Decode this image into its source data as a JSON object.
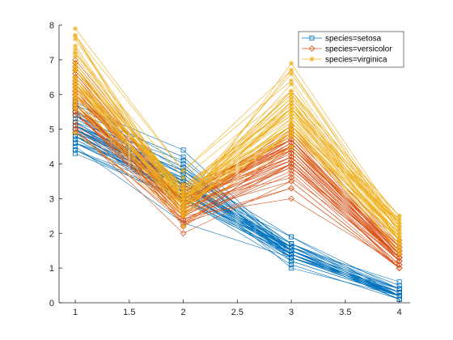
{
  "chart_data": {
    "type": "line",
    "title": "",
    "xlabel": "",
    "ylabel": "",
    "x": [
      1,
      2,
      3,
      4
    ],
    "xlim": [
      0.85,
      4.1
    ],
    "ylim": [
      0,
      8
    ],
    "xticks": [
      1,
      1.5,
      2,
      2.5,
      3,
      3.5,
      4
    ],
    "xtick_labels": [
      "1",
      "1.5",
      "2",
      "2.5",
      "3",
      "3.5",
      "4"
    ],
    "yticks": [
      0,
      1,
      2,
      3,
      4,
      5,
      6,
      7,
      8
    ],
    "ytick_labels": [
      "0",
      "1",
      "2",
      "3",
      "4",
      "5",
      "6",
      "7",
      "8"
    ],
    "grid": false,
    "legend_position": "top-right",
    "series": [
      {
        "name": "species=setosa",
        "color": "#0072BD",
        "marker": "square",
        "lines": [
          [
            5.1,
            3.5,
            1.4,
            0.2
          ],
          [
            4.9,
            3.0,
            1.4,
            0.2
          ],
          [
            4.7,
            3.2,
            1.3,
            0.2
          ],
          [
            4.6,
            3.1,
            1.5,
            0.2
          ],
          [
            5.0,
            3.6,
            1.4,
            0.2
          ],
          [
            5.4,
            3.9,
            1.7,
            0.4
          ],
          [
            4.6,
            3.4,
            1.4,
            0.3
          ],
          [
            5.0,
            3.4,
            1.5,
            0.2
          ],
          [
            4.4,
            2.9,
            1.4,
            0.2
          ],
          [
            4.9,
            3.1,
            1.5,
            0.1
          ],
          [
            5.4,
            3.7,
            1.5,
            0.2
          ],
          [
            4.8,
            3.4,
            1.6,
            0.2
          ],
          [
            4.8,
            3.0,
            1.4,
            0.1
          ],
          [
            4.3,
            3.0,
            1.1,
            0.1
          ],
          [
            5.8,
            4.0,
            1.2,
            0.2
          ],
          [
            5.7,
            4.4,
            1.5,
            0.4
          ],
          [
            5.4,
            3.9,
            1.3,
            0.4
          ],
          [
            5.1,
            3.5,
            1.4,
            0.3
          ],
          [
            5.7,
            3.8,
            1.7,
            0.3
          ],
          [
            5.1,
            3.8,
            1.5,
            0.3
          ],
          [
            5.4,
            3.4,
            1.7,
            0.2
          ],
          [
            5.1,
            3.7,
            1.5,
            0.4
          ],
          [
            4.6,
            3.6,
            1.0,
            0.2
          ],
          [
            5.1,
            3.3,
            1.7,
            0.5
          ],
          [
            4.8,
            3.4,
            1.9,
            0.2
          ],
          [
            5.0,
            3.0,
            1.6,
            0.2
          ],
          [
            5.0,
            3.4,
            1.6,
            0.4
          ],
          [
            5.2,
            3.5,
            1.5,
            0.2
          ],
          [
            5.2,
            3.4,
            1.4,
            0.2
          ],
          [
            4.7,
            3.2,
            1.6,
            0.2
          ],
          [
            4.8,
            3.1,
            1.6,
            0.2
          ],
          [
            5.4,
            3.4,
            1.5,
            0.4
          ],
          [
            5.2,
            4.1,
            1.5,
            0.1
          ],
          [
            5.5,
            4.2,
            1.4,
            0.2
          ],
          [
            4.9,
            3.1,
            1.5,
            0.2
          ],
          [
            5.0,
            3.2,
            1.2,
            0.2
          ],
          [
            5.5,
            3.5,
            1.3,
            0.2
          ],
          [
            4.9,
            3.6,
            1.4,
            0.1
          ],
          [
            4.4,
            3.0,
            1.3,
            0.2
          ],
          [
            5.1,
            3.4,
            1.5,
            0.2
          ],
          [
            5.0,
            3.5,
            1.3,
            0.3
          ],
          [
            4.5,
            2.3,
            1.3,
            0.3
          ],
          [
            4.4,
            3.2,
            1.3,
            0.2
          ],
          [
            5.0,
            3.5,
            1.6,
            0.6
          ],
          [
            5.1,
            3.8,
            1.9,
            0.4
          ],
          [
            4.8,
            3.0,
            1.4,
            0.3
          ],
          [
            5.1,
            3.8,
            1.6,
            0.2
          ],
          [
            4.6,
            3.2,
            1.4,
            0.2
          ],
          [
            5.3,
            3.7,
            1.5,
            0.2
          ],
          [
            5.0,
            3.3,
            1.4,
            0.2
          ]
        ]
      },
      {
        "name": "species=versicolor",
        "color": "#D95319",
        "marker": "diamond",
        "lines": [
          [
            7.0,
            3.2,
            4.7,
            1.4
          ],
          [
            6.4,
            3.2,
            4.5,
            1.5
          ],
          [
            6.9,
            3.1,
            4.9,
            1.5
          ],
          [
            5.5,
            2.3,
            4.0,
            1.3
          ],
          [
            6.5,
            2.8,
            4.6,
            1.5
          ],
          [
            5.7,
            2.8,
            4.5,
            1.3
          ],
          [
            6.3,
            3.3,
            4.7,
            1.6
          ],
          [
            4.9,
            2.4,
            3.3,
            1.0
          ],
          [
            6.6,
            2.9,
            4.6,
            1.3
          ],
          [
            5.2,
            2.7,
            3.9,
            1.4
          ],
          [
            5.0,
            2.0,
            3.5,
            1.0
          ],
          [
            5.9,
            3.0,
            4.2,
            1.5
          ],
          [
            6.0,
            2.2,
            4.0,
            1.0
          ],
          [
            6.1,
            2.9,
            4.7,
            1.4
          ],
          [
            5.6,
            2.9,
            3.6,
            1.3
          ],
          [
            6.7,
            3.1,
            4.4,
            1.4
          ],
          [
            5.6,
            3.0,
            4.5,
            1.5
          ],
          [
            5.8,
            2.7,
            4.1,
            1.0
          ],
          [
            6.2,
            2.2,
            4.5,
            1.5
          ],
          [
            5.6,
            2.5,
            3.9,
            1.1
          ],
          [
            5.9,
            3.2,
            4.8,
            1.8
          ],
          [
            6.1,
            2.8,
            4.0,
            1.3
          ],
          [
            6.3,
            2.5,
            4.9,
            1.5
          ],
          [
            6.1,
            2.8,
            4.7,
            1.2
          ],
          [
            6.4,
            2.9,
            4.3,
            1.3
          ],
          [
            6.6,
            3.0,
            4.4,
            1.4
          ],
          [
            6.8,
            2.8,
            4.8,
            1.4
          ],
          [
            6.7,
            3.0,
            5.0,
            1.7
          ],
          [
            6.0,
            2.9,
            4.5,
            1.5
          ],
          [
            5.7,
            2.6,
            3.5,
            1.0
          ],
          [
            5.5,
            2.4,
            3.8,
            1.1
          ],
          [
            5.5,
            2.4,
            3.7,
            1.0
          ],
          [
            5.8,
            2.7,
            3.9,
            1.2
          ],
          [
            6.0,
            2.7,
            5.1,
            1.6
          ],
          [
            5.4,
            3.0,
            4.5,
            1.5
          ],
          [
            6.0,
            3.4,
            4.5,
            1.6
          ],
          [
            6.7,
            3.1,
            4.7,
            1.5
          ],
          [
            6.3,
            2.3,
            4.4,
            1.3
          ],
          [
            5.6,
            3.0,
            4.1,
            1.3
          ],
          [
            5.5,
            2.5,
            4.0,
            1.3
          ],
          [
            5.5,
            2.6,
            4.4,
            1.2
          ],
          [
            6.1,
            3.0,
            4.6,
            1.4
          ],
          [
            5.8,
            2.6,
            4.0,
            1.2
          ],
          [
            5.0,
            2.3,
            3.3,
            1.0
          ],
          [
            5.6,
            2.7,
            4.2,
            1.3
          ],
          [
            5.7,
            3.0,
            4.2,
            1.2
          ],
          [
            5.7,
            2.9,
            4.2,
            1.3
          ],
          [
            6.2,
            2.9,
            4.3,
            1.3
          ],
          [
            5.1,
            2.5,
            3.0,
            1.1
          ],
          [
            5.7,
            2.8,
            4.1,
            1.3
          ]
        ]
      },
      {
        "name": "species=virginica",
        "color": "#EDB120",
        "marker": "asterisk",
        "lines": [
          [
            6.3,
            3.3,
            6.0,
            2.5
          ],
          [
            5.8,
            2.7,
            5.1,
            1.9
          ],
          [
            7.1,
            3.0,
            5.9,
            2.1
          ],
          [
            6.3,
            2.9,
            5.6,
            1.8
          ],
          [
            6.5,
            3.0,
            5.8,
            2.2
          ],
          [
            7.6,
            3.0,
            6.6,
            2.1
          ],
          [
            4.9,
            2.5,
            4.5,
            1.7
          ],
          [
            7.3,
            2.9,
            6.3,
            1.8
          ],
          [
            6.7,
            2.5,
            5.8,
            1.8
          ],
          [
            7.2,
            3.6,
            6.1,
            2.5
          ],
          [
            6.5,
            3.2,
            5.1,
            2.0
          ],
          [
            6.4,
            2.7,
            5.3,
            1.9
          ],
          [
            6.8,
            3.0,
            5.5,
            2.1
          ],
          [
            5.7,
            2.5,
            5.0,
            2.0
          ],
          [
            5.8,
            2.8,
            5.1,
            2.4
          ],
          [
            6.4,
            3.2,
            5.3,
            2.3
          ],
          [
            6.5,
            3.0,
            5.5,
            1.8
          ],
          [
            7.7,
            3.8,
            6.7,
            2.2
          ],
          [
            7.7,
            2.6,
            6.9,
            2.3
          ],
          [
            6.0,
            2.2,
            5.0,
            1.5
          ],
          [
            6.9,
            3.2,
            5.7,
            2.3
          ],
          [
            5.6,
            2.8,
            4.9,
            2.0
          ],
          [
            7.7,
            2.8,
            6.7,
            2.0
          ],
          [
            6.3,
            2.7,
            4.9,
            1.8
          ],
          [
            6.7,
            3.3,
            5.7,
            2.1
          ],
          [
            7.2,
            3.2,
            6.0,
            1.8
          ],
          [
            6.2,
            2.8,
            4.8,
            1.8
          ],
          [
            6.1,
            3.0,
            4.9,
            1.8
          ],
          [
            6.4,
            2.8,
            5.6,
            2.1
          ],
          [
            7.2,
            3.0,
            5.8,
            1.6
          ],
          [
            7.4,
            2.8,
            6.1,
            1.9
          ],
          [
            7.9,
            3.8,
            6.4,
            2.0
          ],
          [
            6.4,
            2.8,
            5.6,
            2.2
          ],
          [
            6.3,
            2.8,
            5.1,
            1.5
          ],
          [
            6.1,
            2.6,
            5.6,
            1.4
          ],
          [
            7.7,
            3.0,
            6.1,
            2.3
          ],
          [
            6.3,
            3.4,
            5.6,
            2.4
          ],
          [
            6.4,
            3.1,
            5.5,
            1.8
          ],
          [
            6.0,
            3.0,
            4.8,
            1.8
          ],
          [
            6.9,
            3.1,
            5.4,
            2.1
          ],
          [
            6.7,
            3.1,
            5.6,
            2.4
          ],
          [
            6.9,
            3.1,
            5.1,
            2.3
          ],
          [
            5.8,
            2.7,
            5.1,
            1.9
          ],
          [
            6.8,
            3.2,
            5.9,
            2.3
          ],
          [
            6.7,
            3.3,
            5.7,
            2.5
          ],
          [
            6.7,
            3.0,
            5.2,
            2.3
          ],
          [
            6.3,
            2.5,
            5.0,
            1.9
          ],
          [
            6.5,
            3.0,
            5.2,
            2.0
          ],
          [
            6.2,
            3.4,
            5.4,
            2.3
          ],
          [
            5.9,
            3.0,
            5.1,
            1.8
          ]
        ]
      }
    ]
  }
}
